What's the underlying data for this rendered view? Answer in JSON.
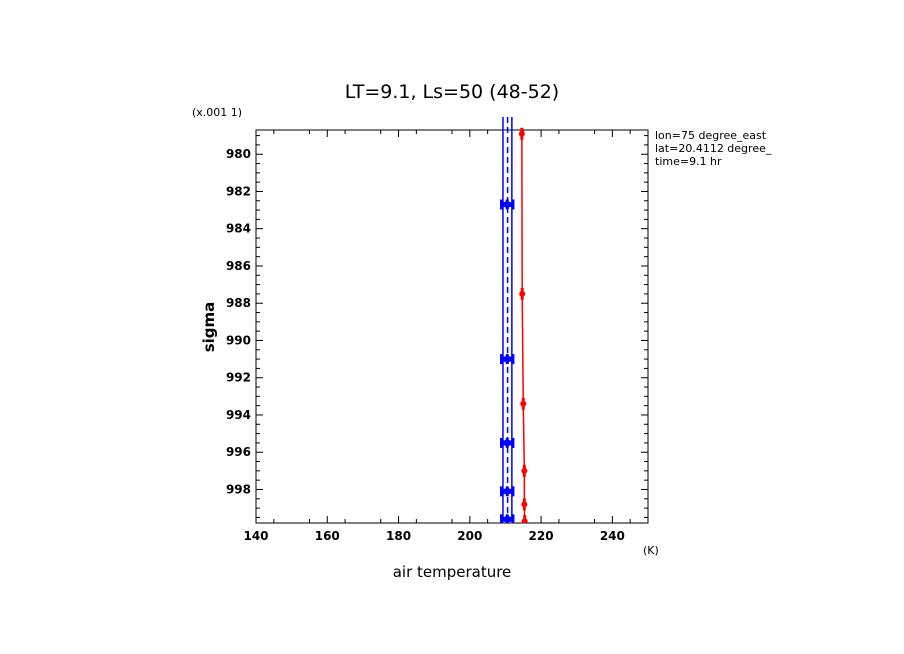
{
  "chart_data": {
    "type": "line",
    "title": "LT=9.1, Ls=50 (48-52)",
    "xlabel": "air temperature",
    "xunit": "(K)",
    "ylabel": "sigma",
    "yscale_label": "(x.001 1)",
    "xlim": [
      140,
      250
    ],
    "ylim": [
      978.7,
      999.8
    ],
    "y_inverted": true,
    "x_ticks": [
      140,
      160,
      180,
      200,
      220,
      240
    ],
    "y_ticks": [
      980,
      982,
      984,
      986,
      988,
      990,
      992,
      994,
      996,
      998
    ],
    "info": [
      "lon=75 degree_east",
      "lat=20.4112 degree_",
      "time=9.1 hr"
    ],
    "colors": {
      "blue": "#0000ff",
      "red": "#ff0000"
    },
    "series": [
      {
        "color": "#ff0000",
        "style": "solid-with-errorbars",
        "points": [
          {
            "x": 214.6,
            "y": 978.9,
            "err": 0.6
          },
          {
            "x": 214.7,
            "y": 987.5,
            "err": 0.6
          },
          {
            "x": 215.0,
            "y": 993.4,
            "err": 0.6
          },
          {
            "x": 215.3,
            "y": 997.0,
            "err": 0.6
          },
          {
            "x": 215.3,
            "y": 998.8,
            "err": 0.6
          },
          {
            "x": 215.4,
            "y": 999.7,
            "err": 0.6
          }
        ]
      },
      {
        "color": "#0000ff",
        "style": "solid",
        "points": [
          {
            "x": 209.3,
            "y": 978.0
          },
          {
            "x": 209.3,
            "y": 999.7
          }
        ]
      },
      {
        "color": "#0000ff",
        "style": "solid",
        "points": [
          {
            "x": 211.8,
            "y": 978.0
          },
          {
            "x": 211.8,
            "y": 999.7
          }
        ]
      },
      {
        "color": "#0000ff",
        "style": "dashed",
        "points": [
          {
            "x": 210.6,
            "y": 978.0
          },
          {
            "x": 210.6,
            "y": 999.7
          }
        ]
      },
      {
        "color": "#0000ff",
        "style": "markers",
        "points": [
          {
            "x": 210.5,
            "y": 982.7,
            "err": 1.6
          },
          {
            "x": 210.5,
            "y": 991.0,
            "err": 1.6
          },
          {
            "x": 210.5,
            "y": 995.5,
            "err": 1.6
          },
          {
            "x": 210.5,
            "y": 998.1,
            "err": 1.6
          },
          {
            "x": 210.5,
            "y": 999.6,
            "err": 1.6
          }
        ]
      }
    ]
  }
}
